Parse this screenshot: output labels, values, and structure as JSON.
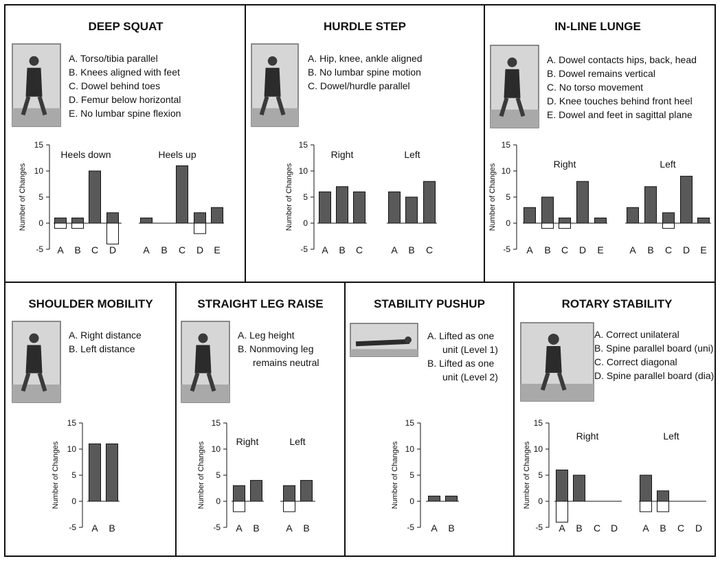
{
  "chart_data": [
    {
      "type": "bar",
      "title": "DEEP SQUAT",
      "criteria": [
        "A. Torso/tibia parallel",
        "B. Knees aligned with feet",
        "C. Dowel behind toes",
        "D. Femur below horizontal",
        "E. No lumbar spine flexion"
      ],
      "ylabel": "Number of Changes",
      "ylim": [
        -5,
        15
      ],
      "yticks": [
        15,
        10,
        5,
        0,
        -5
      ],
      "groups": [
        {
          "name": "Heels down",
          "categories": [
            "A",
            "B",
            "C",
            "D"
          ],
          "positive": [
            1,
            1,
            10,
            2
          ],
          "negative": [
            -1,
            -1,
            0,
            -4
          ]
        },
        {
          "name": "Heels up",
          "categories": [
            "A",
            "B",
            "C",
            "D",
            "E"
          ],
          "positive": [
            1,
            0,
            11,
            2,
            3
          ],
          "negative": [
            0,
            0,
            0,
            -2,
            0
          ]
        }
      ]
    },
    {
      "type": "bar",
      "title": "HURDLE STEP",
      "criteria": [
        "A. Hip, knee, ankle aligned",
        "B. No lumbar spine motion",
        "C. Dowel/hurdle parallel"
      ],
      "ylabel": "Number of Changes",
      "ylim": [
        -5,
        15
      ],
      "yticks": [
        15,
        10,
        5,
        0,
        -5
      ],
      "groups": [
        {
          "name": "Right",
          "categories": [
            "A",
            "B",
            "C"
          ],
          "positive": [
            6,
            7,
            6
          ],
          "negative": [
            0,
            0,
            0
          ]
        },
        {
          "name": "Left",
          "categories": [
            "A",
            "B",
            "C"
          ],
          "positive": [
            6,
            5,
            8
          ],
          "negative": [
            0,
            0,
            0
          ]
        }
      ]
    },
    {
      "type": "bar",
      "title": "IN-LINE LUNGE",
      "criteria": [
        "A. Dowel contacts hips, back, head",
        "B. Dowel remains vertical",
        "C. No torso movement",
        "D. Knee touches behind front heel",
        "E. Dowel and feet in sagittal plane"
      ],
      "ylabel": "Number of Changes",
      "ylim": [
        -5,
        15
      ],
      "yticks": [
        15,
        10,
        5,
        0,
        -5
      ],
      "groups": [
        {
          "name": "Right",
          "categories": [
            "A",
            "B",
            "C",
            "D",
            "E"
          ],
          "positive": [
            3,
            5,
            1,
            8,
            1
          ],
          "negative": [
            0,
            -1,
            -1,
            0,
            0
          ]
        },
        {
          "name": "Left",
          "categories": [
            "A",
            "B",
            "C",
            "D",
            "E"
          ],
          "positive": [
            3,
            7,
            2,
            9,
            1
          ],
          "negative": [
            0,
            0,
            -1,
            0,
            0
          ]
        }
      ]
    },
    {
      "type": "bar",
      "title": "SHOULDER MOBILITY",
      "criteria": [
        "A. Right distance",
        "B. Left distance"
      ],
      "ylabel": "Number of Changes",
      "ylim": [
        -5,
        15
      ],
      "yticks": [
        15,
        10,
        5,
        0,
        -5
      ],
      "groups": [
        {
          "name": "",
          "categories": [
            "A",
            "B"
          ],
          "positive": [
            11,
            11
          ],
          "negative": [
            0,
            0
          ]
        }
      ]
    },
    {
      "type": "bar",
      "title": "STRAIGHT LEG RAISE",
      "criteria": [
        "A. Leg height",
        "B. Nonmoving leg",
        "remains neutral"
      ],
      "ylabel": "Number of Changes",
      "ylim": [
        -5,
        15
      ],
      "yticks": [
        15,
        10,
        5,
        0,
        -5
      ],
      "groups": [
        {
          "name": "Right",
          "categories": [
            "A",
            "B"
          ],
          "positive": [
            3,
            4
          ],
          "negative": [
            -2,
            0
          ]
        },
        {
          "name": "Left",
          "categories": [
            "A",
            "B"
          ],
          "positive": [
            3,
            4
          ],
          "negative": [
            -2,
            0
          ]
        }
      ]
    },
    {
      "type": "bar",
      "title": "STABILITY PUSHUP",
      "criteria": [
        "A. Lifted as one",
        "unit (Level 1)",
        "B. Lifted as one",
        "unit (Level 2)"
      ],
      "ylabel": "Number of Changes",
      "ylim": [
        -5,
        15
      ],
      "yticks": [
        15,
        10,
        5,
        0,
        -5
      ],
      "groups": [
        {
          "name": "",
          "categories": [
            "A",
            "B"
          ],
          "positive": [
            1,
            1
          ],
          "negative": [
            0,
            0
          ]
        }
      ]
    },
    {
      "type": "bar",
      "title": "ROTARY STABILITY",
      "criteria": [
        "A. Correct unilateral",
        "B. Spine parallel board (uni)",
        "C. Correct diagonal",
        "D. Spine parallel board (dia)"
      ],
      "ylabel": "Number of Changes",
      "ylim": [
        -5,
        15
      ],
      "yticks": [
        15,
        10,
        5,
        0,
        -5
      ],
      "groups": [
        {
          "name": "Right",
          "categories": [
            "A",
            "B",
            "C",
            "D"
          ],
          "positive": [
            6,
            5,
            0,
            0
          ],
          "negative": [
            -4,
            0,
            0,
            0
          ]
        },
        {
          "name": "Left",
          "categories": [
            "A",
            "B",
            "C",
            "D"
          ],
          "positive": [
            5,
            2,
            0,
            0
          ],
          "negative": [
            -2,
            -2,
            0,
            0
          ]
        }
      ]
    }
  ],
  "colors": {
    "positive_bar": "#595959",
    "negative_bar": "#ffffff",
    "outline": "#111111",
    "photo_frame": "#6a6a6a"
  }
}
